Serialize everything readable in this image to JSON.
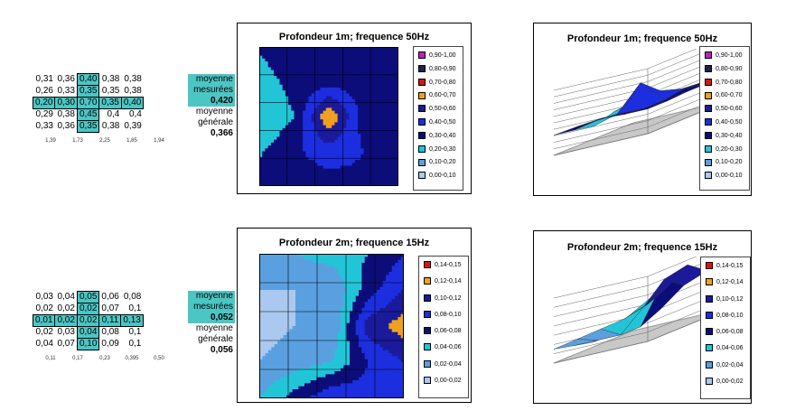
{
  "colors": {
    "highlight": "#4cc6c4",
    "bands1": [
      "#aac8f0",
      "#5aa0e0",
      "#22c5d8",
      "#0d0d7a",
      "#1c2ee0",
      "#1a1a9a",
      "#f0a020",
      "#e01010",
      "#202050",
      "#c020c0"
    ],
    "bands2": [
      "#aac8f0",
      "#5aa0e0",
      "#22c5d8",
      "#0d0d7a",
      "#1c2ee0",
      "#1a1a9a",
      "#f0a020",
      "#e01010"
    ]
  },
  "sections": [
    {
      "grid": [
        [
          "0,31",
          "0,36",
          "0,40",
          "0,38",
          "0,38"
        ],
        [
          "0,26",
          "0,33",
          "0,35",
          "0,35",
          "0,38"
        ],
        [
          "0,20",
          "0,30",
          "0,70",
          "0,35",
          "0,40"
        ],
        [
          "0,29",
          "0,38",
          "0,45",
          "0,4",
          "0,4"
        ],
        [
          "0,33",
          "0,36",
          "0,35",
          "0,38",
          "0,39"
        ]
      ],
      "sums": [
        "1,39",
        "1,73",
        "2,25",
        "1,85",
        "1,94"
      ],
      "moyenne_label_1": "moyenne",
      "moyenne_label_2": "mesurées",
      "moyenne_value": "0,420",
      "generale_label_1": "moyenne",
      "generale_label_2": "générale",
      "generale_value": "0,366"
    },
    {
      "grid": [
        [
          "0,03",
          "0,04",
          "0,05",
          "0,06",
          "0,08"
        ],
        [
          "0,02",
          "0,02",
          "0,02",
          "0,07",
          "0,1"
        ],
        [
          "0,01",
          "0,02",
          "0,02",
          "0,11",
          "0,13"
        ],
        [
          "0,02",
          "0,03",
          "0,04",
          "0,08",
          "0,1"
        ],
        [
          "0,04",
          "0,07",
          "0,10",
          "0,09",
          "0,1"
        ]
      ],
      "sums": [
        "0,11",
        "0,17",
        "0,23",
        "0,395",
        "0,50"
      ],
      "moyenne_label_1": "moyenne",
      "moyenne_label_2": "mesurées",
      "moyenne_value": "0,052",
      "generale_label_1": "moyenne",
      "generale_label_2": "générale",
      "generale_value": "0,056"
    }
  ],
  "chart_data": [
    {
      "type": "heatmap",
      "title": "Profondeur 1m; frequence 50Hz",
      "legend": [
        "0,90-1,00",
        "0,80-0,90",
        "0,70-0,80",
        "0,60-0,70",
        "0,50-0,60",
        "0,40-0,50",
        "0,30-0,40",
        "0,20-0,30",
        "0,10-0,20",
        "0,00-0,10"
      ],
      "z": [
        [
          0.31,
          0.36,
          0.4,
          0.38,
          0.38
        ],
        [
          0.26,
          0.33,
          0.35,
          0.35,
          0.38
        ],
        [
          0.2,
          0.3,
          0.7,
          0.35,
          0.4
        ],
        [
          0.29,
          0.38,
          0.45,
          0.4,
          0.4
        ],
        [
          0.33,
          0.36,
          0.35,
          0.38,
          0.39
        ]
      ]
    },
    {
      "type": "surface",
      "title": "Profondeur 1m; frequence 50Hz",
      "legend": [
        "0,90-1,00",
        "0,80-0,90",
        "0,70-0,80",
        "0,60-0,70",
        "0,50-0,60",
        "0,40-0,50",
        "0,30-0,40",
        "0,20-0,30",
        "0,10-0,20",
        "0,00-0,10"
      ],
      "zticks": [
        "1,00",
        "0,90",
        "0,80",
        "0,70",
        "0,60",
        "0,50",
        "0,40",
        "0,30",
        "0,20",
        "0,10",
        "0,00"
      ],
      "z": [
        [
          0.31,
          0.36,
          0.4,
          0.38,
          0.38
        ],
        [
          0.26,
          0.33,
          0.35,
          0.35,
          0.38
        ],
        [
          0.2,
          0.3,
          0.7,
          0.35,
          0.4
        ],
        [
          0.29,
          0.38,
          0.45,
          0.4,
          0.4
        ],
        [
          0.33,
          0.36,
          0.35,
          0.38,
          0.39
        ]
      ]
    },
    {
      "type": "heatmap",
      "title": "Profondeur 2m; frequence 15Hz",
      "legend": [
        "0,14-0,15",
        "0,12-0,14",
        "0,10-0,12",
        "0,08-0,10",
        "0,06-0,08",
        "0,04-0,06",
        "0,02-0,04",
        "0,00-0,02"
      ],
      "z": [
        [
          0.03,
          0.04,
          0.05,
          0.06,
          0.08
        ],
        [
          0.02,
          0.02,
          0.02,
          0.07,
          0.1
        ],
        [
          0.01,
          0.02,
          0.02,
          0.11,
          0.13
        ],
        [
          0.02,
          0.03,
          0.04,
          0.08,
          0.1
        ],
        [
          0.04,
          0.07,
          0.1,
          0.09,
          0.1
        ]
      ]
    },
    {
      "type": "surface",
      "title": "Profondeur 2m; frequence 15Hz",
      "legend": [
        "0,14-0,15",
        "0,12-0,14",
        "0,10-0,12",
        "0,08-0,10",
        "0,06-0,08",
        "0,04-0,06",
        "0,02-0,04",
        "0,00-0,02"
      ],
      "zticks": [
        "0,14",
        "0,12",
        "0,10",
        "0,08",
        "0,06",
        "0,04",
        "0,02",
        "0,00"
      ],
      "z": [
        [
          0.03,
          0.04,
          0.05,
          0.06,
          0.08
        ],
        [
          0.02,
          0.02,
          0.02,
          0.07,
          0.1
        ],
        [
          0.01,
          0.02,
          0.02,
          0.11,
          0.13
        ],
        [
          0.02,
          0.03,
          0.04,
          0.08,
          0.1
        ],
        [
          0.04,
          0.07,
          0.1,
          0.09,
          0.1
        ]
      ]
    }
  ]
}
